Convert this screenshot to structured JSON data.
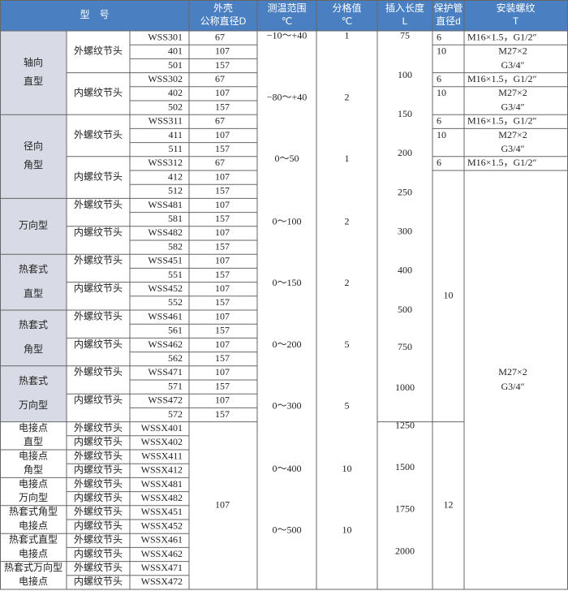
{
  "header": {
    "model": "型　号",
    "shell": [
      "外壳",
      "公称直径D"
    ],
    "range": [
      "测温范围",
      "℃"
    ],
    "division": [
      "分格值",
      "℃"
    ],
    "length": [
      "插入长度",
      "L"
    ],
    "tube": [
      "保护管",
      "直径d"
    ],
    "thread": [
      "安装螺纹",
      "T"
    ]
  },
  "types": [
    [
      "轴向",
      "直型"
    ],
    [
      "径向",
      "角型"
    ],
    [
      "万向型"
    ],
    [
      "热套式",
      "直型"
    ],
    [
      "热套式",
      "角型"
    ],
    [
      "热套式",
      "万向型"
    ],
    [
      "电接点",
      "直型"
    ],
    [
      "电接点",
      "角型"
    ],
    [
      "电接点",
      "万向型"
    ],
    [
      "热套式角型",
      "电接点"
    ],
    [
      "热套式直型",
      "电接点"
    ],
    [
      "热套式万向型",
      "电接点"
    ]
  ],
  "connections": [
    "外螺纹节头",
    "内螺纹节头",
    "外螺纹节头",
    "内螺纹节头",
    "外螺纹节头",
    "内螺纹节头",
    "外螺纹节头",
    "内螺纹节头",
    "外螺纹节头",
    "内螺纹节头",
    "外螺纹节头",
    "内螺纹节头",
    "外螺纹节头",
    "内螺纹节头",
    "外螺纹节头",
    "内螺纹节头",
    "外螺纹节头",
    "内螺纹节头",
    "外螺纹节头",
    "内螺纹节头",
    "外螺纹节头",
    "内螺纹节头",
    "外螺纹节头",
    "内螺纹节头"
  ],
  "models": [
    "WSS301",
    "401",
    "501",
    "WSS302",
    "402",
    "502",
    "WSS311",
    "411",
    "511",
    "WSS312",
    "412",
    "512",
    "WSS481",
    "581",
    "WSS482",
    "582",
    "WSS451",
    "551",
    "WSS452",
    "552",
    "WSS461",
    "561",
    "WSS462",
    "562",
    "WSS471",
    "571",
    "WSS472",
    "572",
    "WSSX401",
    "WSSX402",
    "WSSX411",
    "WSSX412",
    "WSSX481",
    "WSSX482",
    "WSSX451",
    "WSSX452",
    "WSSX461",
    "WSSX462",
    "WSSX471",
    "WSSX472"
  ],
  "shell_diameters": [
    67,
    107,
    157,
    67,
    107,
    157,
    67,
    107,
    157,
    67,
    107,
    157,
    107,
    157,
    107,
    157,
    107,
    157,
    107,
    157,
    107,
    157,
    107,
    157,
    107,
    157,
    107,
    157,
    107
  ],
  "ranges": [
    "−10～+40",
    "−80～+40",
    "0～50",
    "0～100",
    "0～150",
    "0～200",
    "0～300",
    "0～400",
    "0～500"
  ],
  "divisions": [
    1,
    2,
    1,
    2,
    2,
    5,
    5,
    10,
    10
  ],
  "lengths": [
    75,
    100,
    150,
    200,
    250,
    300,
    400,
    500,
    750,
    1000,
    1250,
    1500,
    1750,
    2000
  ],
  "tube_diameters": [
    6,
    10,
    6,
    10,
    6,
    10,
    6,
    10,
    12
  ],
  "threads": [
    [
      "M16×1.5，G1/2″"
    ],
    [
      "M27×2",
      "G3/4″"
    ],
    [
      "M16×1.5，G1/2″"
    ],
    [
      "M27×2",
      "G3/4″"
    ],
    [
      "M16×1.5，G1/2″"
    ],
    [
      "M27×2",
      "G3/4″"
    ],
    [
      "M16×1.5，G1/2″"
    ],
    [
      "M27×2",
      "G3/4″"
    ]
  ]
}
